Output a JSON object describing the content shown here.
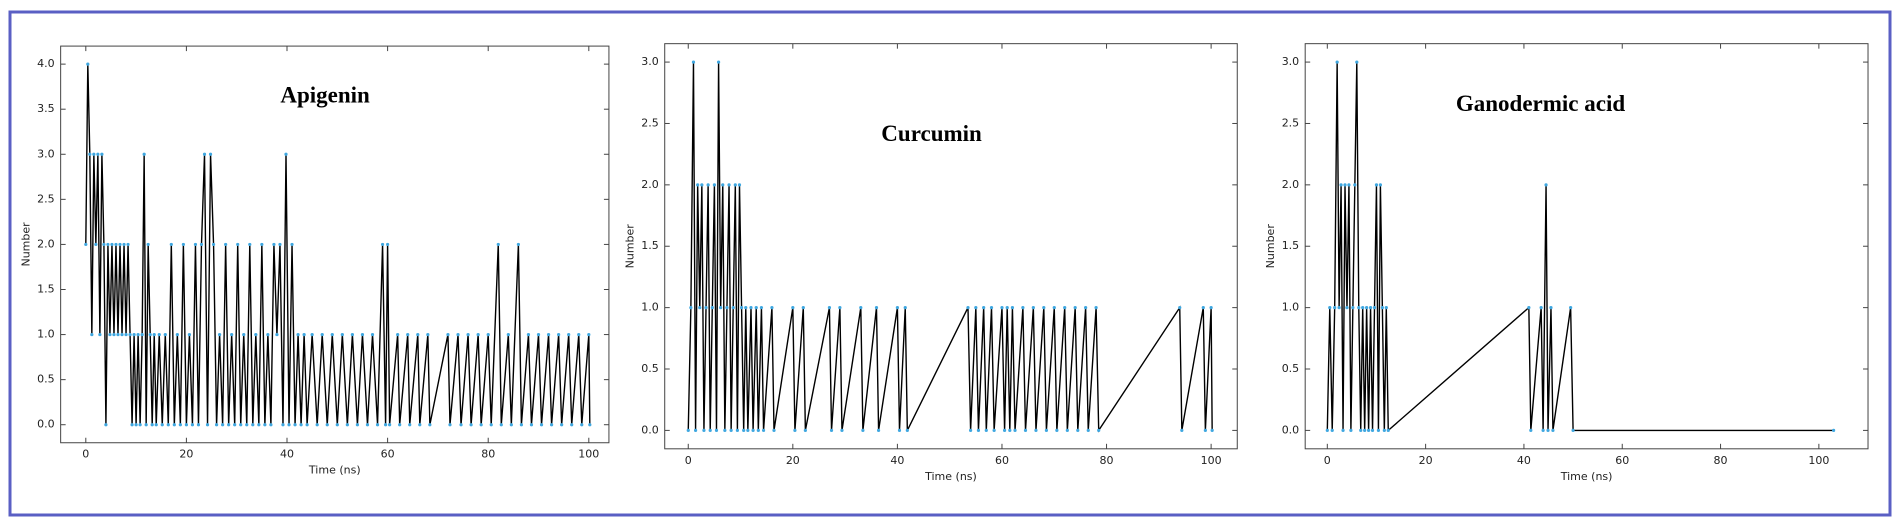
{
  "chart_data": [
    {
      "type": "line",
      "title": "Apigenin",
      "xlabel": "Time (ns)",
      "ylabel": "Number",
      "color": "#000000",
      "marker_color": "#3fa7e0",
      "x": [
        0,
        0.4,
        0.8,
        1.2,
        1.6,
        2,
        2.4,
        2.8,
        3.2,
        3.6,
        4,
        4.4,
        4.8,
        5.2,
        5.6,
        6,
        6.4,
        6.8,
        7.2,
        7.6,
        8,
        8.4,
        8.8,
        9.2,
        9.6,
        10,
        10.4,
        10.8,
        11.2,
        11.6,
        12,
        12.4,
        12.8,
        13.2,
        13.6,
        14,
        14.6,
        15.2,
        15.8,
        16.4,
        17,
        17.6,
        18.2,
        18.8,
        19.4,
        20,
        20.6,
        21.2,
        21.8,
        22.4,
        23,
        23.6,
        24.2,
        24.8,
        25.4,
        26,
        26.6,
        27.2,
        27.8,
        28.4,
        29,
        29.6,
        30.2,
        30.8,
        31.4,
        32,
        32.6,
        33.2,
        33.8,
        34.4,
        35,
        35.6,
        36.2,
        36.8,
        37.4,
        38,
        38.6,
        39.2,
        39.8,
        40.4,
        41,
        41.6,
        42.2,
        42.8,
        43.4,
        44,
        45,
        46,
        47,
        48,
        49,
        50,
        51,
        52,
        53,
        54,
        55,
        56,
        57,
        58,
        59,
        59.6,
        60,
        60.4,
        62,
        62.4,
        64,
        64.4,
        66,
        66.4,
        68,
        68.4,
        72,
        72.4,
        74,
        74.6,
        76,
        76.6,
        78,
        78.6,
        80,
        80.6,
        82,
        82.6,
        84,
        84.6,
        86,
        86.6,
        88,
        88.6,
        90,
        90.6,
        92,
        92.6,
        94,
        94.6,
        96,
        96.6,
        98,
        98.6,
        100,
        100.2
      ],
      "values": [
        2,
        4,
        3,
        1,
        3,
        2,
        3,
        1,
        3,
        2,
        0,
        2,
        1,
        2,
        1,
        2,
        1,
        2,
        1,
        2,
        1,
        2,
        1,
        0,
        1,
        0,
        1,
        0,
        1,
        3,
        0,
        2,
        1,
        0,
        1,
        0,
        1,
        0,
        1,
        0,
        2,
        0,
        1,
        0,
        2,
        0,
        1,
        0,
        2,
        0,
        2,
        3,
        0,
        3,
        2,
        0,
        1,
        0,
        2,
        0,
        1,
        0,
        2,
        0,
        1,
        0,
        2,
        0,
        1,
        0,
        2,
        0,
        1,
        0,
        2,
        1,
        2,
        0,
        3,
        0,
        2,
        0,
        1,
        0,
        1,
        0,
        1,
        0,
        1,
        0,
        1,
        0,
        1,
        0,
        1,
        0,
        1,
        0,
        1,
        0,
        2,
        0,
        2,
        0,
        1,
        0,
        1,
        0,
        1,
        0,
        1,
        0,
        1,
        0,
        1,
        0,
        1,
        0,
        1,
        0,
        1,
        0,
        2,
        0,
        1,
        0,
        2,
        0,
        1,
        0,
        1,
        0,
        1,
        0,
        1,
        0,
        1,
        0,
        1,
        0,
        1,
        0
      ],
      "xlim": [
        -5,
        104
      ],
      "ylim": [
        -0.2,
        4.2
      ],
      "xticks": [
        0,
        20,
        40,
        60,
        80,
        100
      ],
      "yticks": [
        {
          "value": 0,
          "label": "0.0"
        },
        {
          "value": 0.5,
          "label": "0.5"
        },
        {
          "value": 1,
          "label": "1.0"
        },
        {
          "value": 1.5,
          "label": "1.5"
        },
        {
          "value": 2,
          "label": "2.0"
        },
        {
          "value": 2.5,
          "label": "2.5"
        },
        {
          "value": 3,
          "label": "3.0"
        },
        {
          "value": 3.5,
          "label": "3.5"
        },
        {
          "value": 4,
          "label": "4.0"
        }
      ]
    },
    {
      "type": "line",
      "title": "Curcumin",
      "xlabel": "Time (ns)",
      "ylabel": "Number",
      "color": "#000000",
      "marker_color": "#3fa7e0",
      "x": [
        0,
        0.5,
        1,
        1.4,
        1.8,
        2.2,
        2.6,
        3,
        3.4,
        3.8,
        4.2,
        4.6,
        5,
        5.4,
        5.8,
        6.2,
        6.6,
        7,
        7.4,
        7.8,
        8.2,
        8.6,
        9,
        9.4,
        9.8,
        10.2,
        10.6,
        11,
        11.4,
        12,
        12.4,
        13,
        13.4,
        14,
        14.4,
        16,
        16.4,
        20,
        20.4,
        22,
        22.4,
        27,
        27.4,
        29,
        29.4,
        33,
        33.4,
        36,
        36.4,
        40,
        40.4,
        41.5,
        41.9,
        53.5,
        54,
        55,
        55.5,
        56.5,
        57,
        58,
        58.5,
        60,
        60.5,
        61,
        61.5,
        62,
        62.5,
        64,
        64.5,
        66,
        66.5,
        68,
        68.5,
        70,
        70.5,
        72,
        72.5,
        74,
        74.5,
        76,
        76.5,
        78,
        78.5,
        94,
        94.4,
        98.5,
        98.9,
        100,
        100.2
      ],
      "values": [
        0,
        1,
        3,
        0,
        2,
        1,
        2,
        0,
        1,
        2,
        0,
        1,
        2,
        0,
        3,
        1,
        2,
        0,
        1,
        2,
        0,
        1,
        2,
        0,
        2,
        1,
        0,
        1,
        0,
        1,
        0,
        1,
        0,
        1,
        0,
        1,
        0,
        1,
        0,
        1,
        0,
        1,
        0,
        1,
        0,
        1,
        0,
        1,
        0,
        1,
        0,
        1,
        0,
        1,
        0,
        1,
        0,
        1,
        0,
        1,
        0,
        1,
        0,
        1,
        0,
        1,
        0,
        1,
        0,
        1,
        0,
        1,
        0,
        1,
        0,
        1,
        0,
        1,
        0,
        1,
        0,
        1,
        0,
        1,
        0,
        1,
        0,
        1,
        0
      ],
      "xlim": [
        -4.5,
        105
      ],
      "ylim": [
        -0.15,
        3.15
      ],
      "xticks": [
        0,
        20,
        40,
        60,
        80,
        100
      ],
      "yticks": [
        {
          "value": 0,
          "label": "0.0"
        },
        {
          "value": 0.5,
          "label": "0.5"
        },
        {
          "value": 1,
          "label": "1.0"
        },
        {
          "value": 1.5,
          "label": "1.5"
        },
        {
          "value": 2,
          "label": "2.0"
        },
        {
          "value": 2.5,
          "label": "2.5"
        },
        {
          "value": 3,
          "label": "3.0"
        }
      ]
    },
    {
      "type": "line",
      "title": "Ganodermic acid",
      "xlabel": "Time (ns)",
      "ylabel": "Number",
      "color": "#000000",
      "marker_color": "#3fa7e0",
      "x": [
        0,
        0.5,
        1,
        1.5,
        2,
        2.4,
        2.8,
        3.2,
        3.6,
        4,
        4.4,
        4.8,
        5.2,
        5.6,
        6,
        6.4,
        6.8,
        7.2,
        7.6,
        8,
        8.4,
        8.8,
        9.2,
        9.6,
        10,
        10.4,
        10.8,
        11.2,
        11.6,
        12,
        12.4,
        41,
        41.4,
        43.5,
        43.9,
        44.5,
        44.9,
        45.5,
        45.9,
        49.5,
        50,
        103
      ],
      "values": [
        0,
        1,
        0,
        1,
        3,
        1,
        2,
        0,
        2,
        1,
        2,
        0,
        1,
        2,
        3,
        1,
        0,
        1,
        0,
        1,
        0,
        1,
        0,
        1,
        2,
        0,
        2,
        1,
        0,
        1,
        0,
        1,
        0,
        1,
        0,
        2,
        0,
        1,
        0,
        1,
        0,
        0
      ],
      "xlim": [
        -4.5,
        110
      ],
      "ylim": [
        -0.15,
        3.15
      ],
      "xticks": [
        0,
        20,
        40,
        60,
        80,
        100
      ],
      "yticks": [
        {
          "value": 0,
          "label": "0.0"
        },
        {
          "value": 0.5,
          "label": "0.5"
        },
        {
          "value": 1,
          "label": "1.0"
        },
        {
          "value": 1.5,
          "label": "1.5"
        },
        {
          "value": 2,
          "label": "2.0"
        },
        {
          "value": 2.5,
          "label": "2.5"
        },
        {
          "value": 3,
          "label": "3.0"
        }
      ]
    }
  ]
}
